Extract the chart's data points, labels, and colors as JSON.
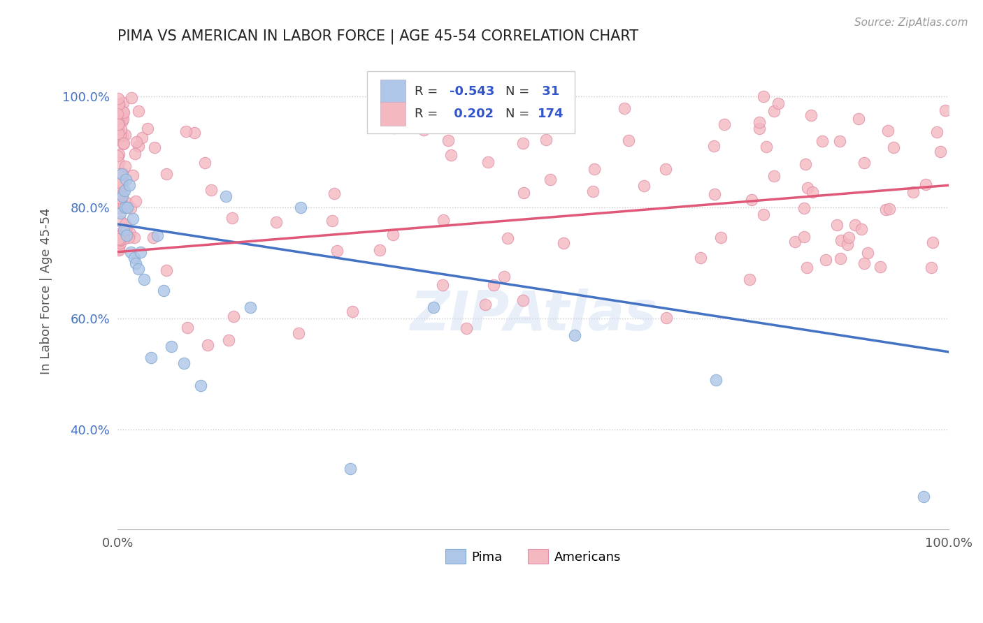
{
  "title": "PIMA VS AMERICAN IN LABOR FORCE | AGE 45-54 CORRELATION CHART",
  "source": "Source: ZipAtlas.com",
  "ylabel": "In Labor Force | Age 45-54",
  "xlim": [
    0.0,
    1.0
  ],
  "ylim": [
    0.22,
    1.08
  ],
  "ytick_labels": [
    "40.0%",
    "60.0%",
    "80.0%",
    "100.0%"
  ],
  "ytick_values": [
    0.4,
    0.6,
    0.8,
    1.0
  ],
  "xtick_labels": [
    "0.0%",
    "100.0%"
  ],
  "xtick_values": [
    0.0,
    1.0
  ],
  "background_color": "#ffffff",
  "grid_color": "#c8c8c8",
  "pima_color": "#aec6e8",
  "americans_color": "#f4b8c1",
  "pima_line_color": "#4472c4",
  "americans_line_color": "#e05878",
  "pima_R": -0.543,
  "pima_N": 31,
  "americans_R": 0.202,
  "americans_N": 174,
  "legend_text_color": "#3355cc",
  "watermark": "ZIPAtlas",
  "pima_R_color": "#3355cc",
  "americans_R_color": "#3355cc"
}
